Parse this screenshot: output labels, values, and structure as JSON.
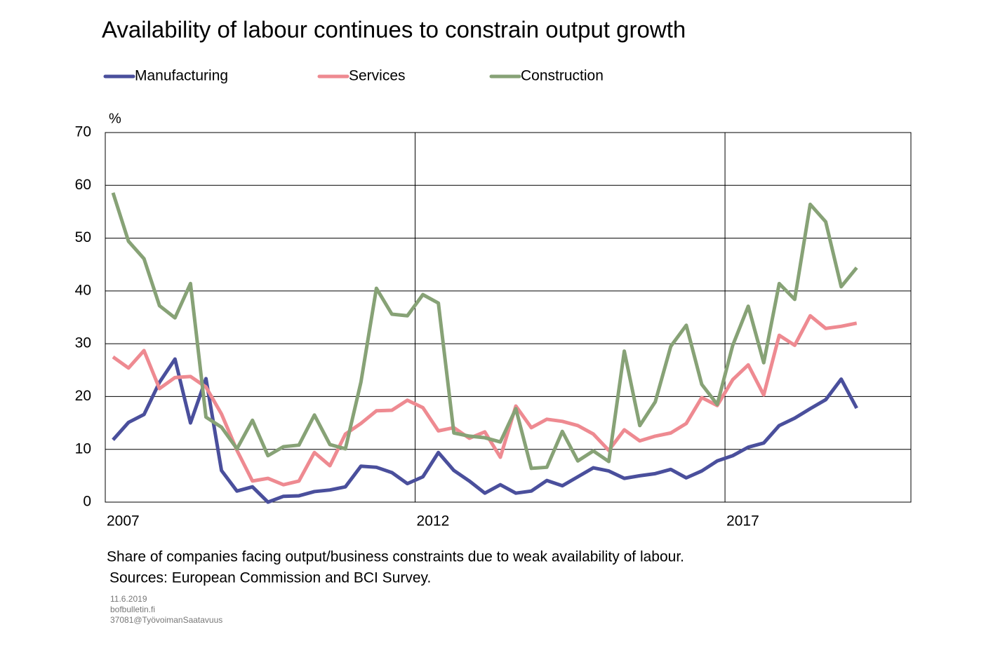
{
  "chart_data": {
    "type": "line",
    "title": "Availability of labour continues to constrain output growth",
    "y_unit": "%",
    "note": "Share of companies facing output/business  constraints due to weak availability  of labour.",
    "source": "Sources: European Commission and BCI Survey.",
    "footer": [
      "11.6.2019",
      "bofbulletin.fi",
      "37081@TyövoimanSaatavuus"
    ],
    "x": [
      2007.125,
      2007.375,
      2007.625,
      2007.875,
      2008.125,
      2008.375,
      2008.625,
      2008.875,
      2009.125,
      2009.375,
      2009.625,
      2009.875,
      2010.125,
      2010.375,
      2010.625,
      2010.875,
      2011.125,
      2011.375,
      2011.625,
      2011.875,
      2012.125,
      2012.375,
      2012.625,
      2012.875,
      2013.125,
      2013.375,
      2013.625,
      2013.875,
      2014.125,
      2014.375,
      2014.625,
      2014.875,
      2015.125,
      2015.375,
      2015.625,
      2015.875,
      2016.125,
      2016.375,
      2016.625,
      2016.875,
      2017.125,
      2017.375,
      2017.625,
      2017.875,
      2018.125,
      2018.375,
      2018.625,
      2018.875,
      2019.125
    ],
    "series": [
      {
        "name": "Manufacturing",
        "color": "#4a4f9c",
        "values": [
          11.8,
          15.1,
          16.6,
          22.7,
          27.1,
          15.0,
          23.4,
          6.0,
          2.1,
          2.9,
          0,
          1.1,
          1.2,
          2.0,
          2.3,
          2.9,
          6.8,
          6.6,
          5.6,
          3.5,
          4.8,
          9.4,
          6.0,
          4.0,
          1.7,
          3.3,
          1.7,
          2.1,
          4.1,
          3.1,
          4.8,
          6.5,
          5.9,
          4.5,
          5.0,
          5.4,
          6.2,
          4.6,
          5.9,
          7.8,
          8.8,
          10.4,
          11.2,
          14.5,
          15.9,
          17.7,
          19.4,
          23.3,
          17.8
        ]
      },
      {
        "name": "Services",
        "color": "#ee8a91",
        "values": [
          27.5,
          25.4,
          28.7,
          21.5,
          23.6,
          23.8,
          21.8,
          16.7,
          9.8,
          4.0,
          4.5,
          3.3,
          4.0,
          9.4,
          6.9,
          12.9,
          14.9,
          17.3,
          17.4,
          19.3,
          17.9,
          13.5,
          14.1,
          12.1,
          13.3,
          8.5,
          18.2,
          14.1,
          15.7,
          15.3,
          14.5,
          12.9,
          9.8,
          13.7,
          11.6,
          12.5,
          13.1,
          14.9,
          19.8,
          18.3,
          23.2,
          26.0,
          20.3,
          31.6,
          29.7,
          35.3,
          32.9,
          33.3,
          33.9
        ]
      },
      {
        "name": "Construction",
        "color": "#87a276",
        "values": [
          58.6,
          49.4,
          46.1,
          37.2,
          34.9,
          41.4,
          16.1,
          14.2,
          10.1,
          15.5,
          8.8,
          10.5,
          10.8,
          16.5,
          10.9,
          10.1,
          22.7,
          40.5,
          35.6,
          35.3,
          39.3,
          37.7,
          13.1,
          12.5,
          12.2,
          11.4,
          17.7,
          6.4,
          6.6,
          13.4,
          7.8,
          9.7,
          7.7,
          28.6,
          14.5,
          19.0,
          29.5,
          33.5,
          22.3,
          18.5,
          29.7,
          37.1,
          26.4,
          41.4,
          38.4,
          56.4,
          53.1,
          40.8,
          44.4
        ]
      }
    ],
    "xlim": [
      2007,
      2020
    ],
    "xticks": [
      2007,
      2012,
      2017
    ],
    "ylim": [
      0,
      70
    ],
    "yticks": [
      0,
      10,
      20,
      30,
      40,
      50,
      60,
      70
    ],
    "grid": true,
    "legend": "top"
  }
}
